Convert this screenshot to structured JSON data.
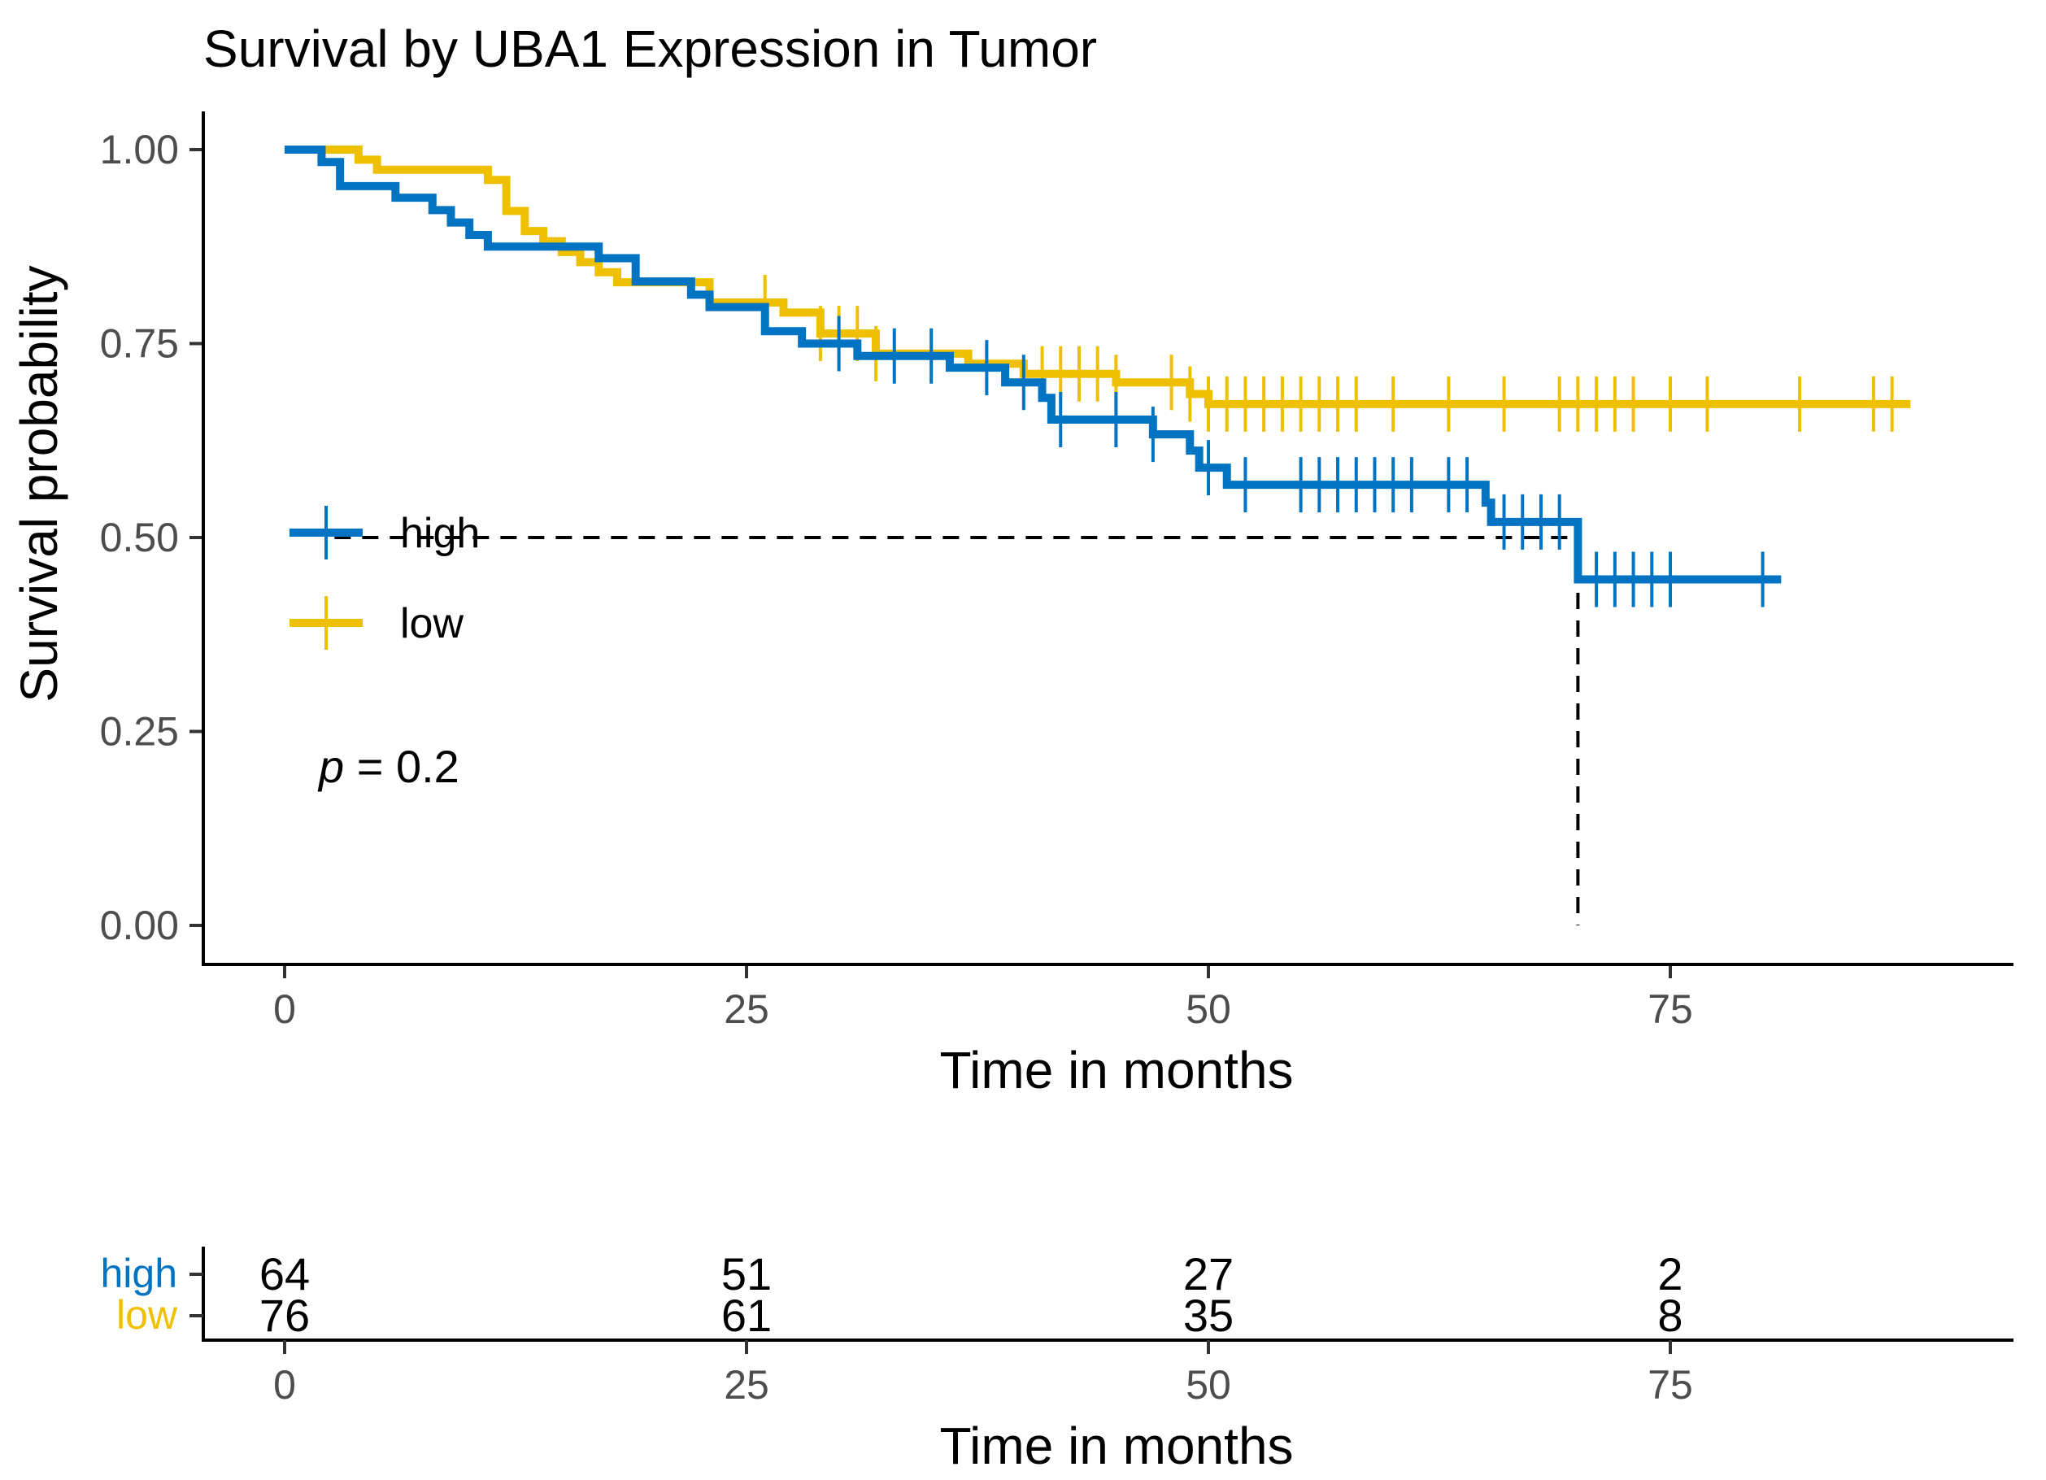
{
  "chart_data": {
    "type": "line",
    "subtype": "kaplan-meier",
    "title": "Survival by UBA1 Expression in Tumor",
    "xlabel": "Time in months",
    "ylabel": "Survival probability",
    "xlim": [
      -4.5,
      94
    ],
    "ylim": [
      0,
      1
    ],
    "x_ticks": [
      0,
      25,
      50,
      75
    ],
    "y_ticks": [
      0,
      0.25,
      0.5,
      0.75,
      1
    ],
    "y_tick_labels": [
      "0.00",
      "0.25",
      "0.50",
      "0.75",
      "1.00"
    ],
    "legend_position": "left-middle",
    "p_value_label": "p",
    "p_value_text": " = 0.2",
    "median_survival": {
      "series": "high",
      "x": 70,
      "y": 0.5
    },
    "series": [
      {
        "name": "high",
        "color": "#0073C2",
        "steps": [
          [
            0,
            1.0
          ],
          [
            2,
            0.984
          ],
          [
            3,
            0.953
          ],
          [
            6,
            0.938
          ],
          [
            8,
            0.922
          ],
          [
            9,
            0.906
          ],
          [
            10,
            0.89
          ],
          [
            11,
            0.875
          ],
          [
            17,
            0.86
          ],
          [
            19,
            0.83
          ],
          [
            22,
            0.813
          ],
          [
            23,
            0.797
          ],
          [
            26,
            0.766
          ],
          [
            28,
            0.75
          ],
          [
            31,
            0.734
          ],
          [
            36,
            0.719
          ],
          [
            39,
            0.7
          ],
          [
            41,
            0.68
          ],
          [
            41.5,
            0.652
          ],
          [
            47,
            0.633
          ],
          [
            49,
            0.612
          ],
          [
            49.5,
            0.59
          ],
          [
            51,
            0.568
          ],
          [
            65,
            0.545
          ],
          [
            65.3,
            0.52
          ],
          [
            70,
            0.446
          ],
          [
            81,
            0.446
          ]
        ],
        "censor_times": [
          30,
          33,
          35,
          38,
          40,
          42,
          45,
          47,
          50,
          52,
          55,
          56,
          57,
          58,
          59,
          60,
          61,
          63,
          64,
          66,
          67,
          68,
          69,
          71,
          72,
          73,
          74,
          75,
          80
        ],
        "risk_table": [
          64,
          51,
          27,
          2
        ]
      },
      {
        "name": "low",
        "color": "#EFC000",
        "steps": [
          [
            0,
            1.0
          ],
          [
            4,
            0.987
          ],
          [
            5,
            0.974
          ],
          [
            11,
            0.961
          ],
          [
            12,
            0.921
          ],
          [
            13,
            0.895
          ],
          [
            14,
            0.882
          ],
          [
            15,
            0.868
          ],
          [
            16,
            0.855
          ],
          [
            17,
            0.842
          ],
          [
            18,
            0.829
          ],
          [
            23,
            0.803
          ],
          [
            27,
            0.79
          ],
          [
            29,
            0.763
          ],
          [
            32,
            0.737
          ],
          [
            37,
            0.724
          ],
          [
            40,
            0.711
          ],
          [
            45,
            0.7
          ],
          [
            49,
            0.685
          ],
          [
            50,
            0.672
          ],
          [
            88,
            0.672
          ]
        ],
        "censor_times": [
          26,
          29,
          30,
          31,
          32,
          41,
          42,
          43,
          44,
          45,
          48,
          49,
          50,
          51,
          52,
          53,
          54,
          55,
          56,
          57,
          58,
          60,
          63,
          66,
          69,
          70,
          71,
          72,
          73,
          75,
          77,
          82,
          86,
          87
        ],
        "risk_table": [
          76,
          61,
          35,
          8
        ]
      }
    ],
    "risk_table": {
      "times": [
        0,
        25,
        50,
        75
      ],
      "xlabel": "Time in months"
    }
  }
}
